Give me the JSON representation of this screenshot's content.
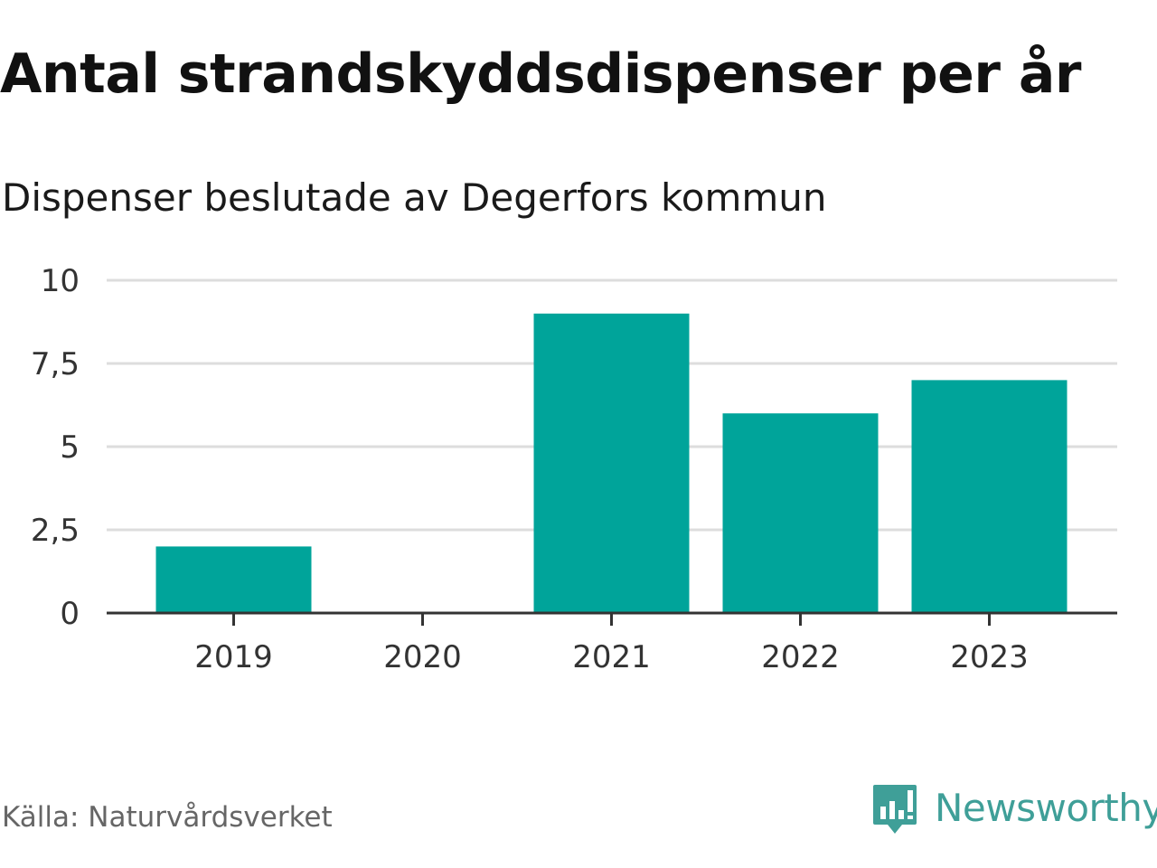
{
  "chart_data": {
    "type": "bar",
    "title": "Antal strandskyddsdispenser per år",
    "subtitle": "Dispenser beslutade av Degerfors kommun",
    "categories": [
      "2019",
      "2020",
      "2021",
      "2022",
      "2023"
    ],
    "values": [
      2,
      0,
      9,
      6,
      7
    ],
    "yticks": [
      0,
      2.5,
      5,
      7.5,
      10
    ],
    "ytick_labels": [
      "0",
      "2,5",
      "5",
      "7,5",
      "10"
    ],
    "ylim": [
      0,
      10
    ],
    "xlabel": "",
    "ylabel": "",
    "grid": true,
    "legend": "none",
    "bar_color": "#00a49a",
    "grid_color": "#dddddd",
    "axis_color": "#333333"
  },
  "footer": {
    "source": "Källa: Naturvårdsverket",
    "brand": "Newsworthy",
    "brand_color": "#3f9f98"
  }
}
